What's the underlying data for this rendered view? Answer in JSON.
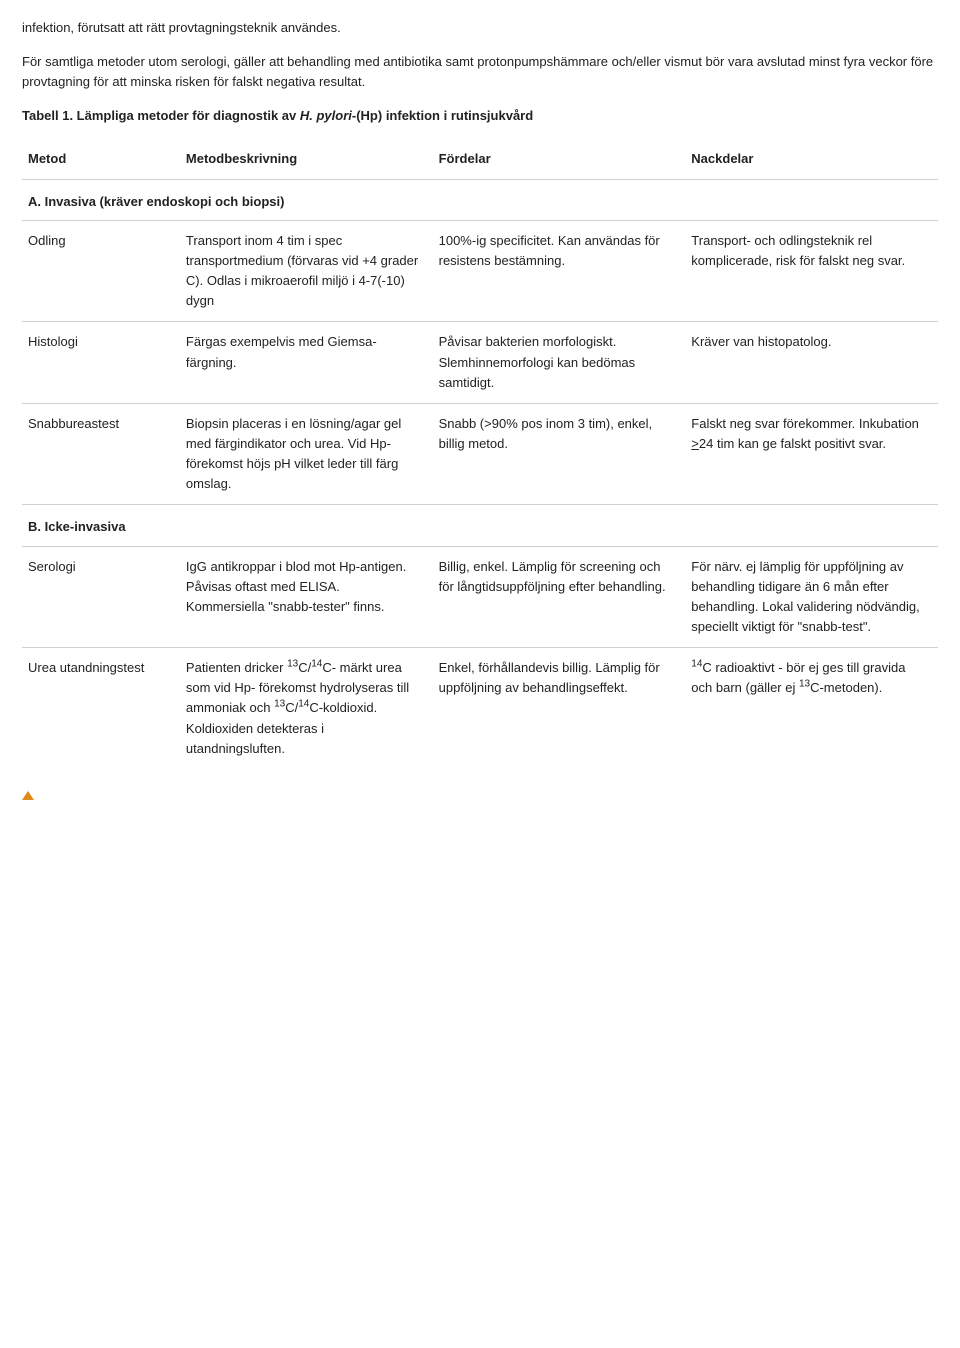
{
  "intro": {
    "p1": "infektion, förutsatt att rätt provtagningsteknik användes.",
    "p2": "För samtliga metoder utom serologi, gäller att behandling med antibiotika samt protonpumpshämmare och/eller vismut bör vara avslutad minst fyra veckor före provtagning för att minska risken för falskt negativa resultat."
  },
  "table_title_prefix": "Tabell 1. Lämpliga metoder för diagnostik av ",
  "table_title_em": "H. pylori",
  "table_title_suffix": "-(Hp) infektion i rutinsjukvård",
  "headers": {
    "method": "Metod",
    "desc": "Metodbeskrivning",
    "pros": "Fördelar",
    "cons": "Nackdelar"
  },
  "sectionA": "A. Invasiva (kräver endoskopi och biopsi)",
  "sectionB": "B. Icke-invasiva",
  "rows": {
    "odling": {
      "name": "Odling",
      "desc": "Transport inom 4 tim i spec transportmedium (förvaras vid +4 grader C). Odlas i mikroaerofil miljö i 4-7(-10) dygn",
      "pros": "100%-ig specificitet. Kan användas för resistens bestämning.",
      "cons": "Transport- och odlingsteknik rel komplicerade, risk för falskt neg svar."
    },
    "histologi": {
      "name": "Histologi",
      "desc": "Färgas exempelvis med Giemsa-färgning.",
      "pros": "Påvisar bakterien morfologiskt. Slemhinnemorfologi kan bedömas samtidigt.",
      "cons": "Kräver van histopatolog."
    },
    "snabb": {
      "name": "Snabbureastest",
      "desc": "Biopsin placeras i en lösning/agar gel med färgindikator och urea. Vid Hp-förekomst höjs pH vilket leder till färg omslag.",
      "pros": "Snabb (>90% pos inom 3 tim), enkel, billig metod.",
      "cons_pre": "Falskt neg svar förekommer. Inkubation ",
      "cons_underline": ">",
      "cons_post": "24 tim kan ge falskt positivt svar."
    },
    "serologi": {
      "name": "Serologi",
      "desc": "IgG antikroppar i blod mot Hp-antigen. Påvisas oftast med ELISA. Kommersiella \"snabb-tester\" finns.",
      "pros": "Billig, enkel. Lämplig för screening och för långtidsuppföljning efter behandling.",
      "cons": "För närv. ej lämplig för uppföljning av behandling tidigare än 6 mån efter behandling. Lokal validering nödvändig, speciellt viktigt för \"snabb-test\"."
    },
    "urea": {
      "name": "Urea utandningstest",
      "pros": "Enkel, förhållandevis billig. Lämplig för uppföljning av behandlingseffekt."
    }
  },
  "urea_desc": {
    "t1": "Patienten dricker ",
    "t2": "C/",
    "t3": "C- märkt urea som vid Hp- förekomst hydrolyseras till ammoniak och ",
    "t4": "C/",
    "t5": "C-koldioxid. Koldioxiden detekteras i utandningsluften."
  },
  "urea_cons": {
    "t1": "C radioaktivt - bör ej ges till gravida och barn (gäller ej ",
    "t2": "C-metoden)."
  },
  "sup": {
    "c13": "13",
    "c14": "14"
  }
}
